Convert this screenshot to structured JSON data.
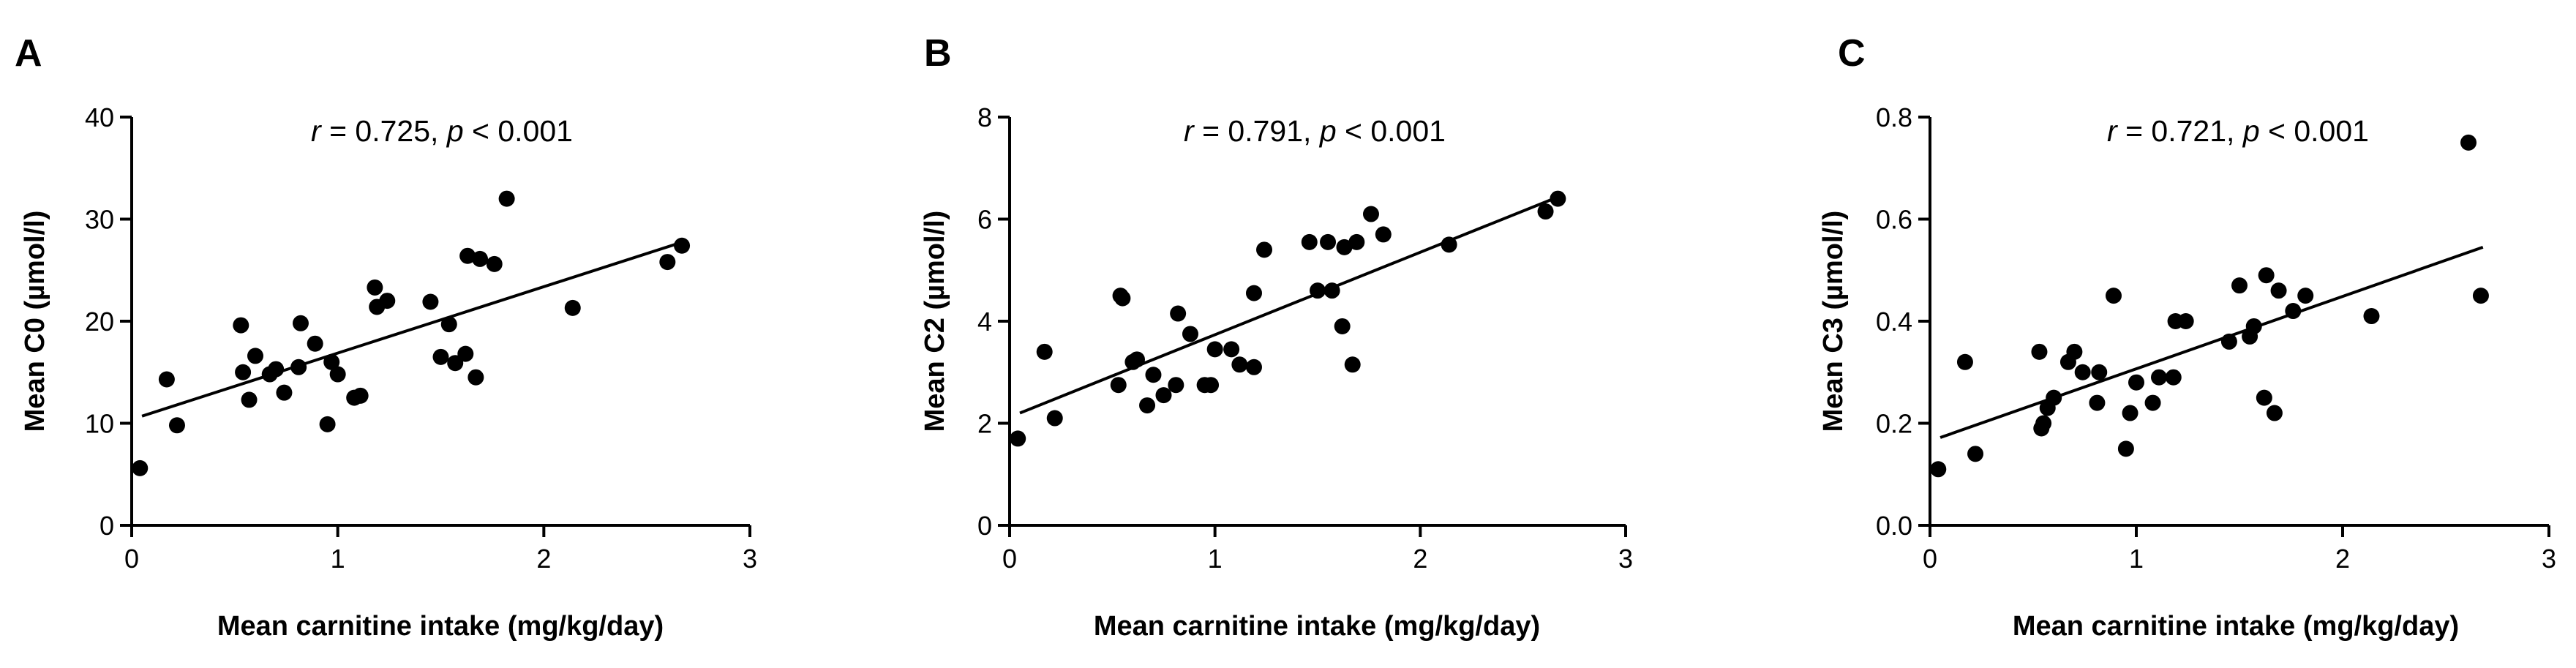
{
  "figure": {
    "point_color": "#000000",
    "line_color": "#000000"
  },
  "chart_data": [
    {
      "type": "scatter",
      "panel": "A",
      "annotation": {
        "r_symbol": "r",
        "r_text": " = 0.725, ",
        "p_symbol": "p",
        "p_text": " < 0.001"
      },
      "xlabel": "Mean carnitine intake (mg/kg/day)",
      "ylabel": "Mean C0 (µmol/l)",
      "xlim": [
        0,
        3
      ],
      "ylim": [
        0,
        40
      ],
      "xticks": [
        0,
        1,
        2,
        3
      ],
      "xtick_labels": [
        "0",
        "1",
        "2",
        "3"
      ],
      "yticks": [
        0,
        10,
        20,
        30,
        40
      ],
      "ytick_labels": [
        "0",
        "10",
        "20",
        "30",
        "40"
      ],
      "regression": {
        "x": [
          0.05,
          2.68
        ],
        "y": [
          10.7,
          27.8
        ]
      },
      "points": [
        {
          "x": 0.04,
          "y": 5.6
        },
        {
          "x": 0.17,
          "y": 14.3
        },
        {
          "x": 0.22,
          "y": 9.8
        },
        {
          "x": 0.53,
          "y": 19.6
        },
        {
          "x": 0.54,
          "y": 15.0
        },
        {
          "x": 0.57,
          "y": 12.3
        },
        {
          "x": 0.6,
          "y": 16.6
        },
        {
          "x": 0.67,
          "y": 14.8
        },
        {
          "x": 0.7,
          "y": 15.3
        },
        {
          "x": 0.74,
          "y": 13.0
        },
        {
          "x": 0.81,
          "y": 15.5
        },
        {
          "x": 0.82,
          "y": 19.8
        },
        {
          "x": 0.89,
          "y": 17.8
        },
        {
          "x": 0.95,
          "y": 9.9
        },
        {
          "x": 0.97,
          "y": 16.0
        },
        {
          "x": 1.0,
          "y": 14.8
        },
        {
          "x": 1.08,
          "y": 12.5
        },
        {
          "x": 1.11,
          "y": 12.7
        },
        {
          "x": 1.18,
          "y": 23.3
        },
        {
          "x": 1.19,
          "y": 21.4
        },
        {
          "x": 1.24,
          "y": 22.0
        },
        {
          "x": 1.45,
          "y": 21.9
        },
        {
          "x": 1.5,
          "y": 16.5
        },
        {
          "x": 1.54,
          "y": 19.7
        },
        {
          "x": 1.57,
          "y": 15.9
        },
        {
          "x": 1.62,
          "y": 16.8
        },
        {
          "x": 1.63,
          "y": 26.4
        },
        {
          "x": 1.67,
          "y": 14.5
        },
        {
          "x": 1.69,
          "y": 26.1
        },
        {
          "x": 1.76,
          "y": 25.6
        },
        {
          "x": 1.82,
          "y": 32.0
        },
        {
          "x": 2.14,
          "y": 21.3
        },
        {
          "x": 2.6,
          "y": 25.8
        },
        {
          "x": 2.67,
          "y": 27.4
        }
      ]
    },
    {
      "type": "scatter",
      "panel": "B",
      "annotation": {
        "r_symbol": "r",
        "r_text": " = 0.791, ",
        "p_symbol": "p",
        "p_text": " < 0.001"
      },
      "xlabel": "Mean carnitine intake (mg/kg/day)",
      "ylabel": "Mean C2 (µmol/l)",
      "xlim": [
        0,
        3
      ],
      "ylim": [
        0,
        8
      ],
      "xticks": [
        0,
        1,
        2,
        3
      ],
      "xtick_labels": [
        "0",
        "1",
        "2",
        "3"
      ],
      "yticks": [
        0,
        2,
        4,
        6,
        8
      ],
      "ytick_labels": [
        "0",
        "2",
        "4",
        "6",
        "8"
      ],
      "regression": {
        "x": [
          0.05,
          2.68
        ],
        "y": [
          2.2,
          6.45
        ]
      },
      "points": [
        {
          "x": 0.04,
          "y": 1.7
        },
        {
          "x": 0.17,
          "y": 3.4
        },
        {
          "x": 0.22,
          "y": 2.1
        },
        {
          "x": 0.53,
          "y": 2.75
        },
        {
          "x": 0.54,
          "y": 4.5
        },
        {
          "x": 0.55,
          "y": 4.45
        },
        {
          "x": 0.6,
          "y": 3.2
        },
        {
          "x": 0.62,
          "y": 3.25
        },
        {
          "x": 0.67,
          "y": 2.35
        },
        {
          "x": 0.7,
          "y": 2.95
        },
        {
          "x": 0.75,
          "y": 2.55
        },
        {
          "x": 0.81,
          "y": 2.75
        },
        {
          "x": 0.82,
          "y": 4.15
        },
        {
          "x": 0.88,
          "y": 3.75
        },
        {
          "x": 0.95,
          "y": 2.75
        },
        {
          "x": 0.98,
          "y": 2.75
        },
        {
          "x": 1.0,
          "y": 3.45
        },
        {
          "x": 1.08,
          "y": 3.45
        },
        {
          "x": 1.12,
          "y": 3.15
        },
        {
          "x": 1.19,
          "y": 3.1
        },
        {
          "x": 1.19,
          "y": 4.55
        },
        {
          "x": 1.24,
          "y": 5.4
        },
        {
          "x": 1.46,
          "y": 5.55
        },
        {
          "x": 1.5,
          "y": 4.6
        },
        {
          "x": 1.55,
          "y": 5.55
        },
        {
          "x": 1.57,
          "y": 4.6
        },
        {
          "x": 1.62,
          "y": 3.9
        },
        {
          "x": 1.63,
          "y": 5.45
        },
        {
          "x": 1.67,
          "y": 3.15
        },
        {
          "x": 1.69,
          "y": 5.55
        },
        {
          "x": 1.76,
          "y": 6.1
        },
        {
          "x": 1.82,
          "y": 5.7
        },
        {
          "x": 2.14,
          "y": 5.5
        },
        {
          "x": 2.61,
          "y": 6.15
        },
        {
          "x": 2.67,
          "y": 6.4
        }
      ]
    },
    {
      "type": "scatter",
      "panel": "C",
      "annotation": {
        "r_symbol": "r",
        "r_text": " = 0.721, ",
        "p_symbol": "p",
        "p_text": " < 0.001"
      },
      "xlabel": "Mean carnitine intake (mg/kg/day)",
      "ylabel": "Mean C3 (µmol/l)",
      "xlim": [
        0,
        3
      ],
      "ylim": [
        0,
        0.8
      ],
      "xticks": [
        0,
        1,
        2,
        3
      ],
      "xtick_labels": [
        "0",
        "1",
        "2",
        "3"
      ],
      "yticks": [
        0,
        0.2,
        0.4,
        0.6,
        0.8
      ],
      "ytick_labels": [
        "0.0",
        "0.2",
        "0.4",
        "0.6",
        "0.8"
      ],
      "regression": {
        "x": [
          0.05,
          2.68
        ],
        "y": [
          0.172,
          0.545
        ]
      },
      "points": [
        {
          "x": 0.04,
          "y": 0.11
        },
        {
          "x": 0.17,
          "y": 0.32
        },
        {
          "x": 0.22,
          "y": 0.14
        },
        {
          "x": 0.53,
          "y": 0.34
        },
        {
          "x": 0.54,
          "y": 0.19
        },
        {
          "x": 0.55,
          "y": 0.2
        },
        {
          "x": 0.57,
          "y": 0.23
        },
        {
          "x": 0.6,
          "y": 0.25
        },
        {
          "x": 0.67,
          "y": 0.32
        },
        {
          "x": 0.7,
          "y": 0.34
        },
        {
          "x": 0.74,
          "y": 0.3
        },
        {
          "x": 0.81,
          "y": 0.24
        },
        {
          "x": 0.82,
          "y": 0.3
        },
        {
          "x": 0.89,
          "y": 0.45
        },
        {
          "x": 0.95,
          "y": 0.15
        },
        {
          "x": 0.97,
          "y": 0.22
        },
        {
          "x": 1.0,
          "y": 0.28
        },
        {
          "x": 1.08,
          "y": 0.24
        },
        {
          "x": 1.11,
          "y": 0.29
        },
        {
          "x": 1.18,
          "y": 0.29
        },
        {
          "x": 1.19,
          "y": 0.4
        },
        {
          "x": 1.24,
          "y": 0.4
        },
        {
          "x": 1.45,
          "y": 0.36
        },
        {
          "x": 1.5,
          "y": 0.47
        },
        {
          "x": 1.55,
          "y": 0.37
        },
        {
          "x": 1.57,
          "y": 0.39
        },
        {
          "x": 1.62,
          "y": 0.25
        },
        {
          "x": 1.63,
          "y": 0.49
        },
        {
          "x": 1.67,
          "y": 0.22
        },
        {
          "x": 1.69,
          "y": 0.46
        },
        {
          "x": 1.76,
          "y": 0.42
        },
        {
          "x": 1.82,
          "y": 0.45
        },
        {
          "x": 2.14,
          "y": 0.41
        },
        {
          "x": 2.61,
          "y": 0.75
        },
        {
          "x": 2.67,
          "y": 0.45
        }
      ]
    }
  ]
}
